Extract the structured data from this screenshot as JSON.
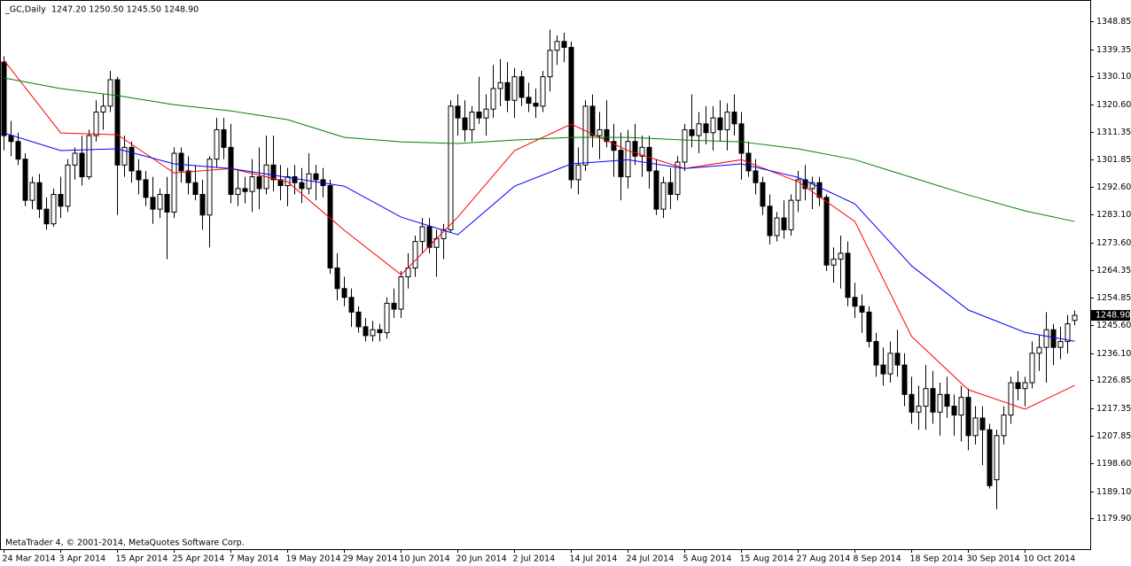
{
  "chart_data": {
    "type": "candlestick",
    "title": "_GC,Daily",
    "ohlc_text": "1247.20 1250.50 1245.50 1248.90",
    "footer": "MetaTrader 4, © 2001-2014, MetaQuotes Software Corp.",
    "up_color": "#ffffff",
    "down_color": "#000000",
    "categories": [
      "24 Mar 2014",
      null,
      null,
      null,
      null,
      null,
      null,
      null,
      "3 Apr 2014",
      null,
      null,
      null,
      null,
      null,
      null,
      null,
      "15 Apr 2014",
      null,
      null,
      null,
      null,
      null,
      null,
      null,
      "25 Apr 2014",
      null,
      null,
      null,
      null,
      null,
      null,
      null,
      "7 May 2014",
      null,
      null,
      null,
      null,
      null,
      null,
      null,
      "19 May 2014",
      null,
      null,
      null,
      null,
      null,
      null,
      null,
      "29 May 2014",
      null,
      null,
      null,
      null,
      null,
      null,
      null,
      "10 Jun 2014",
      null,
      null,
      null,
      null,
      null,
      null,
      null,
      "20 Jun 2014",
      null,
      null,
      null,
      null,
      null,
      null,
      null,
      "2 Jul 2014",
      null,
      null,
      null,
      null,
      null,
      null,
      null,
      "14 Jul 2014",
      null,
      null,
      null,
      null,
      null,
      null,
      null,
      "24 Jul 2014",
      null,
      null,
      null,
      null,
      null,
      null,
      null,
      "5 Aug 2014",
      null,
      null,
      null,
      null,
      null,
      null,
      null,
      "15 Aug 2014",
      null,
      null,
      null,
      null,
      null,
      null,
      null,
      "27 Aug 2014",
      null,
      null,
      null,
      null,
      null,
      null,
      null,
      "8 Sep 2014",
      null,
      null,
      null,
      null,
      null,
      null,
      null,
      "18 Sep 2014",
      null,
      null,
      null,
      null,
      null,
      null,
      null,
      "30 Sep 2014",
      null,
      null,
      null,
      null,
      null,
      null,
      null,
      "10 Oct 2014",
      null,
      null,
      null,
      null,
      null,
      null,
      null
    ],
    "ohlc": [
      [
        1335,
        1337,
        1305,
        1310
      ],
      [
        1310,
        1315,
        1303,
        1308
      ],
      [
        1308,
        1311,
        1300,
        1302
      ],
      [
        1302,
        1304,
        1286,
        1288
      ],
      [
        1288,
        1296,
        1285,
        1294
      ],
      [
        1294,
        1297,
        1282,
        1285
      ],
      [
        1285,
        1289,
        1278,
        1280
      ],
      [
        1280,
        1292,
        1279,
        1290
      ],
      [
        1290,
        1296,
        1282,
        1286
      ],
      [
        1286,
        1302,
        1284,
        1300
      ],
      [
        1300,
        1306,
        1295,
        1304
      ],
      [
        1304,
        1310,
        1293,
        1296
      ],
      [
        1296,
        1312,
        1295,
        1310
      ],
      [
        1310,
        1322,
        1308,
        1318
      ],
      [
        1318,
        1324,
        1312,
        1320
      ],
      [
        1320,
        1332,
        1318,
        1329
      ],
      [
        1329,
        1330,
        1283,
        1300
      ],
      [
        1300,
        1310,
        1296,
        1306
      ],
      [
        1306,
        1308,
        1294,
        1298
      ],
      [
        1298,
        1302,
        1290,
        1295
      ],
      [
        1295,
        1298,
        1286,
        1289
      ],
      [
        1289,
        1296,
        1280,
        1285
      ],
      [
        1285,
        1292,
        1282,
        1290
      ],
      [
        1290,
        1296,
        1268,
        1284
      ],
      [
        1284,
        1306,
        1282,
        1304
      ],
      [
        1304,
        1306,
        1294,
        1298
      ],
      [
        1298,
        1303,
        1290,
        1294
      ],
      [
        1294,
        1300,
        1288,
        1290
      ],
      [
        1290,
        1295,
        1278,
        1283
      ],
      [
        1283,
        1303,
        1272,
        1302
      ],
      [
        1302,
        1316,
        1299,
        1312
      ],
      [
        1312,
        1316,
        1302,
        1306
      ],
      [
        1306,
        1314,
        1287,
        1290
      ],
      [
        1290,
        1298,
        1286,
        1292
      ],
      [
        1292,
        1296,
        1287,
        1291
      ],
      [
        1291,
        1302,
        1284,
        1296
      ],
      [
        1296,
        1306,
        1285,
        1292
      ],
      [
        1292,
        1310,
        1290,
        1300
      ],
      [
        1300,
        1310,
        1291,
        1295
      ],
      [
        1295,
        1300,
        1288,
        1293
      ],
      [
        1293,
        1299,
        1286,
        1296
      ],
      [
        1296,
        1300,
        1290,
        1294
      ],
      [
        1294,
        1299,
        1287,
        1292
      ],
      [
        1292,
        1304,
        1290,
        1297
      ],
      [
        1297,
        1300,
        1288,
        1295
      ],
      [
        1295,
        1299,
        1289,
        1293
      ],
      [
        1293,
        1295,
        1263,
        1265
      ],
      [
        1265,
        1270,
        1254,
        1258
      ],
      [
        1258,
        1262,
        1252,
        1255
      ],
      [
        1255,
        1258,
        1245,
        1250
      ],
      [
        1250,
        1252,
        1243,
        1245
      ],
      [
        1245,
        1248,
        1240,
        1242
      ],
      [
        1242,
        1247,
        1240,
        1244
      ],
      [
        1244,
        1246,
        1240,
        1243
      ],
      [
        1243,
        1255,
        1241,
        1253
      ],
      [
        1253,
        1258,
        1248,
        1251
      ],
      [
        1251,
        1264,
        1248,
        1262
      ],
      [
        1262,
        1270,
        1258,
        1265
      ],
      [
        1265,
        1276,
        1262,
        1274
      ],
      [
        1274,
        1282,
        1270,
        1279
      ],
      [
        1279,
        1282,
        1270,
        1272
      ],
      [
        1272,
        1278,
        1262,
        1275
      ],
      [
        1275,
        1280,
        1268,
        1278
      ],
      [
        1278,
        1322,
        1277,
        1320
      ],
      [
        1320,
        1324,
        1310,
        1316
      ],
      [
        1316,
        1322,
        1308,
        1312
      ],
      [
        1312,
        1320,
        1308,
        1318
      ],
      [
        1318,
        1330,
        1314,
        1316
      ],
      [
        1316,
        1324,
        1310,
        1319
      ],
      [
        1319,
        1334,
        1316,
        1326
      ],
      [
        1326,
        1336,
        1320,
        1328
      ],
      [
        1328,
        1335,
        1318,
        1322
      ],
      [
        1322,
        1333,
        1316,
        1330
      ],
      [
        1330,
        1332,
        1320,
        1323
      ],
      [
        1323,
        1328,
        1318,
        1321
      ],
      [
        1321,
        1326,
        1316,
        1320
      ],
      [
        1320,
        1332,
        1318,
        1330
      ],
      [
        1330,
        1346,
        1325,
        1339
      ],
      [
        1339,
        1344,
        1334,
        1342
      ],
      [
        1342,
        1345,
        1335,
        1340
      ],
      [
        1340,
        1342,
        1292,
        1295
      ],
      [
        1295,
        1306,
        1290,
        1300
      ],
      [
        1300,
        1322,
        1298,
        1320
      ],
      [
        1320,
        1324,
        1306,
        1310
      ],
      [
        1310,
        1318,
        1302,
        1312
      ],
      [
        1312,
        1322,
        1306,
        1308
      ],
      [
        1308,
        1314,
        1296,
        1305
      ],
      [
        1305,
        1311,
        1288,
        1296
      ],
      [
        1296,
        1312,
        1292,
        1308
      ],
      [
        1308,
        1314,
        1300,
        1303
      ],
      [
        1303,
        1310,
        1296,
        1306
      ],
      [
        1306,
        1310,
        1292,
        1298
      ],
      [
        1298,
        1302,
        1283,
        1285
      ],
      [
        1285,
        1296,
        1282,
        1294
      ],
      [
        1294,
        1299,
        1285,
        1290
      ],
      [
        1290,
        1303,
        1288,
        1301
      ],
      [
        1301,
        1314,
        1298,
        1312
      ],
      [
        1312,
        1324,
        1306,
        1310
      ],
      [
        1310,
        1318,
        1304,
        1314
      ],
      [
        1314,
        1320,
        1307,
        1311
      ],
      [
        1311,
        1320,
        1305,
        1316
      ],
      [
        1316,
        1322,
        1308,
        1312
      ],
      [
        1312,
        1321,
        1305,
        1318
      ],
      [
        1318,
        1324,
        1310,
        1314
      ],
      [
        1314,
        1318,
        1295,
        1304
      ],
      [
        1304,
        1308,
        1296,
        1298
      ],
      [
        1298,
        1302,
        1290,
        1294
      ],
      [
        1294,
        1296,
        1283,
        1286
      ],
      [
        1286,
        1290,
        1273,
        1276
      ],
      [
        1276,
        1284,
        1274,
        1282
      ],
      [
        1282,
        1288,
        1275,
        1278
      ],
      [
        1278,
        1290,
        1276,
        1288
      ],
      [
        1288,
        1298,
        1284,
        1295
      ],
      [
        1295,
        1300,
        1288,
        1292
      ],
      [
        1292,
        1296,
        1285,
        1294
      ],
      [
        1294,
        1296,
        1286,
        1289
      ],
      [
        1289,
        1290,
        1264,
        1266
      ],
      [
        1266,
        1272,
        1260,
        1268
      ],
      [
        1268,
        1276,
        1258,
        1270
      ],
      [
        1270,
        1274,
        1252,
        1255
      ],
      [
        1255,
        1260,
        1248,
        1252
      ],
      [
        1252,
        1256,
        1243,
        1250
      ],
      [
        1250,
        1252,
        1238,
        1240
      ],
      [
        1240,
        1243,
        1228,
        1232
      ],
      [
        1232,
        1238,
        1225,
        1229
      ],
      [
        1229,
        1240,
        1226,
        1236
      ],
      [
        1236,
        1244,
        1228,
        1232
      ],
      [
        1232,
        1236,
        1218,
        1222
      ],
      [
        1222,
        1228,
        1212,
        1216
      ],
      [
        1216,
        1225,
        1210,
        1218
      ],
      [
        1218,
        1232,
        1210,
        1224
      ],
      [
        1224,
        1230,
        1212,
        1216
      ],
      [
        1216,
        1226,
        1208,
        1222
      ],
      [
        1222,
        1228,
        1214,
        1218
      ],
      [
        1218,
        1222,
        1208,
        1215
      ],
      [
        1215,
        1225,
        1206,
        1221
      ],
      [
        1221,
        1224,
        1203,
        1208
      ],
      [
        1208,
        1218,
        1205,
        1214
      ],
      [
        1214,
        1218,
        1198,
        1210
      ],
      [
        1210,
        1212,
        1190,
        1191
      ],
      [
        1193,
        1210,
        1183,
        1208
      ],
      [
        1208,
        1218,
        1205,
        1215
      ],
      [
        1215,
        1228,
        1212,
        1226
      ],
      [
        1226,
        1230,
        1220,
        1224
      ],
      [
        1224,
        1228,
        1218,
        1226
      ],
      [
        1226,
        1240,
        1224,
        1236
      ],
      [
        1236,
        1242,
        1230,
        1238
      ],
      [
        1238,
        1250,
        1226,
        1244
      ],
      [
        1244,
        1246,
        1232,
        1238
      ],
      [
        1238,
        1245,
        1234,
        1240
      ],
      [
        1240,
        1249,
        1236,
        1246
      ],
      [
        1247.2,
        1250.5,
        1245.5,
        1248.9
      ]
    ],
    "overlay_x": [
      0,
      8,
      16,
      24,
      32,
      40,
      48,
      56,
      64,
      72,
      80,
      88,
      96,
      104,
      112,
      120,
      128,
      136,
      144,
      151
    ],
    "overlays": [
      {
        "color": "#ff0000",
        "values": [
          1335.6,
          1310.9,
          1310.3,
          1297.3,
          1298.8,
          1294.3,
          1277.8,
          1262.7,
          1282.3,
          1304.9,
          1313.9,
          1304.9,
          1298.8,
          1301.8,
          1294.3,
          1280.8,
          1241.7,
          1223.6,
          1217.0,
          1225.1
        ]
      },
      {
        "color": "#0000ff",
        "values": [
          1310.9,
          1304.9,
          1305.5,
          1300.4,
          1298.8,
          1295.8,
          1292.8,
          1282.3,
          1276.3,
          1292.8,
          1300.4,
          1301.8,
          1298.8,
          1300.4,
          1295.8,
          1286.8,
          1265.7,
          1250.7,
          1243.1,
          1240.1
        ]
      },
      {
        "color": "#008000",
        "values": [
          1329.6,
          1326.0,
          1323.6,
          1320.5,
          1318.4,
          1315.4,
          1309.4,
          1307.9,
          1307.3,
          1308.5,
          1309.4,
          1309.4,
          1308.5,
          1307.9,
          1305.5,
          1301.8,
          1295.8,
          1289.8,
          1284.4,
          1280.8
        ]
      }
    ],
    "ylim": [
      1169.4,
      1356.1
    ],
    "yticks": [
      1348.85,
      1339.35,
      {
        "value": 1330.1,
        "label": "1330.10"
      },
      {
        "value": 1320.6,
        "label": "1320.60"
      },
      1311.35,
      1301.85,
      {
        "value": 1292.6,
        "label": "1292.60"
      },
      {
        "value": 1283.1,
        "label": "1283.10"
      },
      {
        "value": 1273.6,
        "label": "1273.60"
      },
      1264.35,
      1254.85,
      {
        "value": 1245.6,
        "label": "1245.60"
      },
      {
        "value": 1236.1,
        "label": "1236.10"
      },
      1226.85,
      1217.35,
      1207.85,
      {
        "value": 1198.6,
        "label": "1198.60"
      },
      {
        "value": 1189.1,
        "label": "1189.10"
      },
      {
        "value": 1179.9,
        "label": "1179.90"
      }
    ],
    "last_price": {
      "value": 1248.9,
      "label": "1248.90"
    }
  }
}
